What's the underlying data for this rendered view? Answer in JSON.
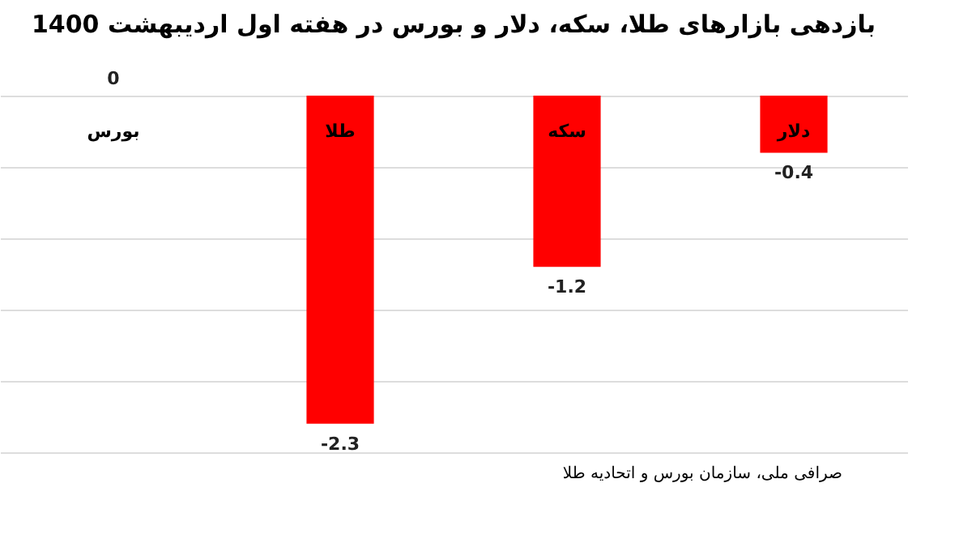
{
  "chart_data": {
    "type": "bar",
    "title": "بازدهی بازارهای طلا، سکه، دلار و بورس در هفته اول اردیبهشت 1400",
    "categories": [
      "بورس",
      "طلا",
      "سکه",
      "دلار"
    ],
    "values": [
      0,
      -2.3,
      -1.2,
      -0.4
    ],
    "color": "#ff0000",
    "ylim": [
      -2.5,
      0
    ],
    "yticks": [
      -2.5,
      -2,
      -1.5,
      -1,
      -0.5,
      0
    ],
    "grid": "y",
    "tick_labels": "x",
    "data_labels": true,
    "annotations": [
      "صرافی ملی، سازمان بورس و اتحادیه طلا"
    ]
  }
}
